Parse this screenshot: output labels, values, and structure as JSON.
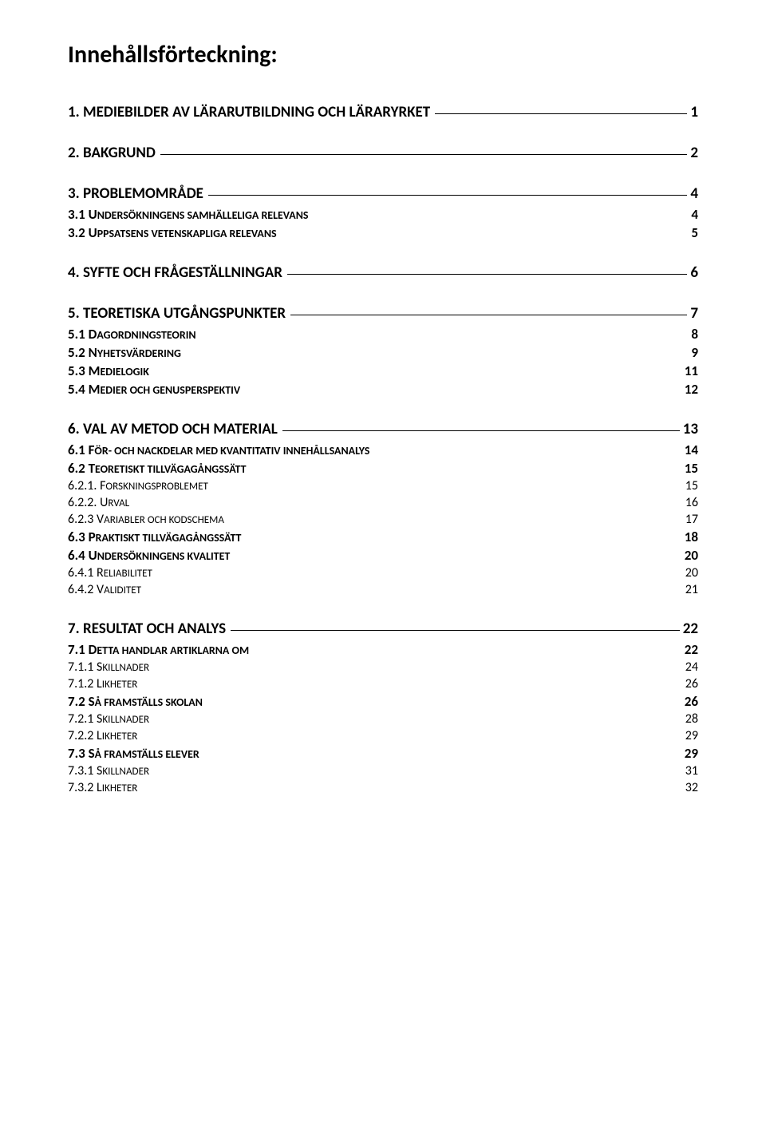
{
  "title": "Innehållsförteckning:",
  "toc": [
    {
      "level": 1,
      "label": "1. MEDIEBILDER AV LÄRARUTBILDNING OCH LÄRARYRKET",
      "page": "1",
      "underline": true,
      "group_start": true
    },
    {
      "level": 1,
      "label": "2. BAKGRUND",
      "page": "2",
      "underline": true,
      "group_start": true
    },
    {
      "level": 1,
      "label": "3. PROBLEMOMRÅDE",
      "page": "4",
      "underline": true,
      "group_start": true
    },
    {
      "level": 2,
      "label_prefix": "3.1 U",
      "label_sc": "NDERSÖKNINGENS SAMHÄLLELIGA RELEVANS",
      "page": "4",
      "underline": false
    },
    {
      "level": 2,
      "label_prefix": "3.2 U",
      "label_sc": "PPSATSENS VETENSKAPLIGA RELEVANS",
      "page": "5",
      "underline": false
    },
    {
      "level": 1,
      "label": "4. SYFTE OCH FRÅGESTÄLLNINGAR",
      "page": "6",
      "underline": true,
      "group_start": true
    },
    {
      "level": 1,
      "label": "5. TEORETISKA UTGÅNGSPUNKTER",
      "page": "7",
      "underline": true,
      "group_start": true
    },
    {
      "level": 2,
      "label_prefix": "5.1 D",
      "label_sc": "AGORDNINGSTEORIN",
      "page": "8",
      "underline": false
    },
    {
      "level": 2,
      "label_prefix": "5.2 N",
      "label_sc": "YHETSVÄRDERING",
      "page": "9",
      "underline": false
    },
    {
      "level": 2,
      "label_prefix": "5.3 M",
      "label_sc": "EDIELOGIK",
      "page": "11",
      "underline": false
    },
    {
      "level": 2,
      "label_prefix": "5.4 M",
      "label_sc": "EDIER OCH GENUSPERSPEKTIV",
      "page": "12",
      "underline": false
    },
    {
      "level": 1,
      "label": "6. VAL AV METOD OCH MATERIAL",
      "page": "13",
      "underline": true,
      "group_start": true
    },
    {
      "level": 2,
      "label_prefix": "6.1 F",
      "label_sc": "ÖR- OCH NACKDELAR MED KVANTITATIV INNEHÅLLSANALYS",
      "page": "14",
      "underline": false
    },
    {
      "level": 2,
      "label_prefix": "6.2 T",
      "label_sc": "EORETISKT TILLVÄGAGÅNGSSÄTT",
      "page": "15",
      "underline": false
    },
    {
      "level": 3,
      "label_prefix": "6.2.1. F",
      "label_sc": "ORSKNINGSPROBLEMET",
      "page": "15",
      "underline": false
    },
    {
      "level": 3,
      "label_prefix": "6.2.2. U",
      "label_sc": "RVAL",
      "page": "16",
      "underline": false
    },
    {
      "level": 3,
      "label_prefix": "6.2.3 V",
      "label_sc": "ARIABLER OCH KODSCHEMA",
      "page": "17",
      "underline": false
    },
    {
      "level": 2,
      "label_prefix": "6.3 P",
      "label_sc": "RAKTISKT TILLVÄGAGÅNGSSÄTT",
      "page": "18",
      "underline": false
    },
    {
      "level": 2,
      "label_prefix": "6.4 U",
      "label_sc": "NDERSÖKNINGENS KVALITET",
      "page": "20",
      "underline": false
    },
    {
      "level": 3,
      "label_prefix": "6.4.1 R",
      "label_sc": "ELIABILITET",
      "page": "20",
      "underline": false
    },
    {
      "level": 3,
      "label_prefix": "6.4.2 V",
      "label_sc": "ALIDITET",
      "page": "21",
      "underline": false
    },
    {
      "level": 1,
      "label": "7. RESULTAT OCH ANALYS",
      "page": "22",
      "underline": true,
      "group_start": true
    },
    {
      "level": 2,
      "label_prefix": "7.1 D",
      "label_sc": "ETTA HANDLAR ARTIKLARNA OM",
      "page": "22",
      "underline": false
    },
    {
      "level": 3,
      "label_prefix": "7.1.1 S",
      "label_sc": "KILLNADER",
      "page": "24",
      "underline": false
    },
    {
      "level": 3,
      "label_prefix": "7.1.2 L",
      "label_sc": "IKHETER",
      "page": "26",
      "underline": false
    },
    {
      "level": 2,
      "label_prefix": "7.2 S",
      "label_sc": "Å FRAMSTÄLLS SKOLAN",
      "page": "26",
      "underline": false
    },
    {
      "level": 3,
      "label_prefix": "7.2.1 S",
      "label_sc": "KILLNADER",
      "page": "28",
      "underline": false
    },
    {
      "level": 3,
      "label_prefix": "7.2.2 L",
      "label_sc": "IKHETER",
      "page": "29",
      "underline": false
    },
    {
      "level": 2,
      "label_prefix": "7.3 S",
      "label_sc": "Å FRAMSTÄLLS ELEVER",
      "page": "29",
      "underline": false
    },
    {
      "level": 3,
      "label_prefix": "7.3.1 S",
      "label_sc": "KILLNADER",
      "page": "31",
      "underline": false
    },
    {
      "level": 3,
      "label_prefix": "7.3.2 L",
      "label_sc": "IKHETER",
      "page": "32",
      "underline": false
    }
  ]
}
